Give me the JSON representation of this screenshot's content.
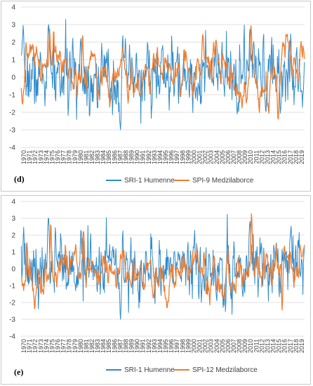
{
  "chart_data": [
    {
      "type": "line",
      "panel_label": "(d)",
      "ylim": [
        -4,
        4
      ],
      "yticks": [
        4,
        3,
        2,
        1,
        0,
        -1,
        -2,
        -3,
        -4
      ],
      "x_start": 1970,
      "x_end": 2019,
      "grid": "horizontal",
      "legend_position": "bottom",
      "series": [
        {
          "name": "SRI-1 Humenne",
          "color": "#2e8bcc",
          "peaks": [
            [
              1970.4,
              2.2
            ],
            [
              1974.8,
              3.1
            ],
            [
              1980.5,
              2.4
            ],
            [
              1987.5,
              -3.0
            ],
            [
              2010.3,
              2.8
            ],
            [
              2017.5,
              2.0
            ]
          ]
        },
        {
          "name": "SPI-9 Medzilaborce",
          "color": "#ed7d31",
          "peaks": [
            [
              1970.8,
              1.9
            ],
            [
              1975.0,
              2.7
            ],
            [
              1980.8,
              2.3
            ],
            [
              2002.0,
              2.2
            ],
            [
              2010.5,
              2.9
            ],
            [
              2015.3,
              -2.3
            ]
          ]
        }
      ]
    },
    {
      "type": "line",
      "panel_label": "(e)",
      "ylim": [
        -4,
        4
      ],
      "yticks": [
        4,
        3,
        2,
        1,
        0,
        -1,
        -2,
        -3,
        -4
      ],
      "x_start": 1970,
      "x_end": 2019,
      "grid": "horizontal",
      "legend_position": "bottom",
      "series": [
        {
          "name": "SRI-1 Humenne",
          "color": "#2e8bcc",
          "peaks": [
            [
              1970.4,
              2.2
            ],
            [
              1974.8,
              3.1
            ],
            [
              1980.5,
              2.4
            ],
            [
              1987.5,
              -3.0
            ],
            [
              2010.3,
              2.8
            ],
            [
              2017.5,
              2.0
            ]
          ]
        },
        {
          "name": "SPI-12 Medzilaborce",
          "color": "#ed7d31",
          "peaks": [
            [
              1971.0,
              1.7
            ],
            [
              1975.2,
              2.8
            ],
            [
              1981.0,
              2.2
            ],
            [
              2002.2,
              1.9
            ],
            [
              2010.6,
              3.3
            ],
            [
              2016.0,
              -2.6
            ]
          ]
        }
      ]
    }
  ]
}
